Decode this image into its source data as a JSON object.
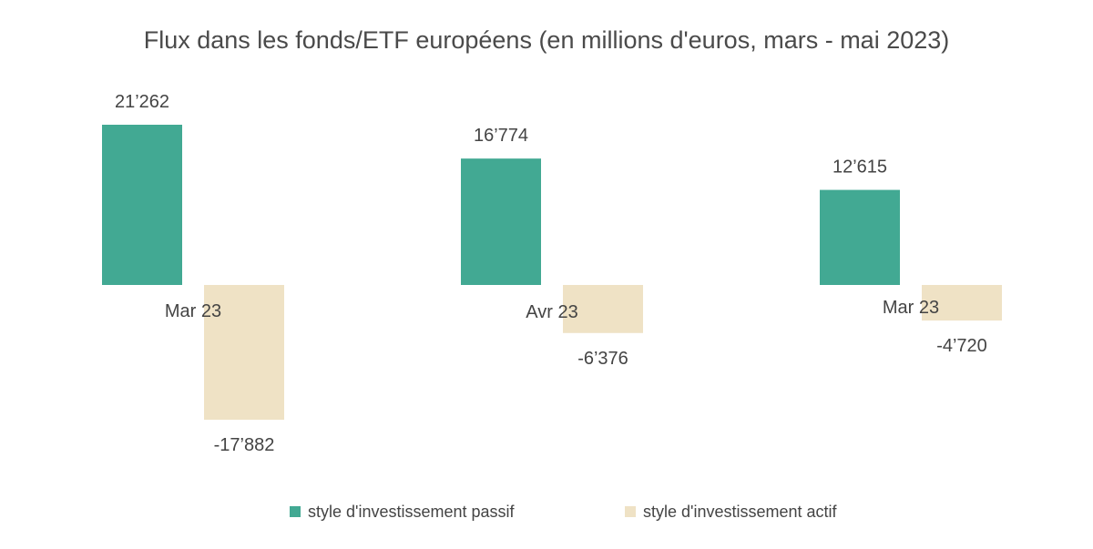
{
  "chart_data": {
    "type": "bar",
    "title": "Flux dans les fonds/ETF européens (en millions d'euros, mars - mai 2023)",
    "categories": [
      "Mar 23",
      "Avr 23",
      "Mar 23"
    ],
    "series": [
      {
        "name": "style d'investissement passif",
        "color": "#42a993",
        "values": [
          21262,
          16774,
          12615
        ],
        "labels": [
          "21’262",
          "16’774",
          "12’615"
        ]
      },
      {
        "name": "style d'investissement actif",
        "color": "#efe2c5",
        "values": [
          -17882,
          -6376,
          -4720
        ],
        "labels": [
          "-17’882",
          "-6’376",
          "-4’720"
        ]
      }
    ],
    "xlabel": "",
    "ylabel": "",
    "grid": false,
    "legend_position": "bottom"
  }
}
